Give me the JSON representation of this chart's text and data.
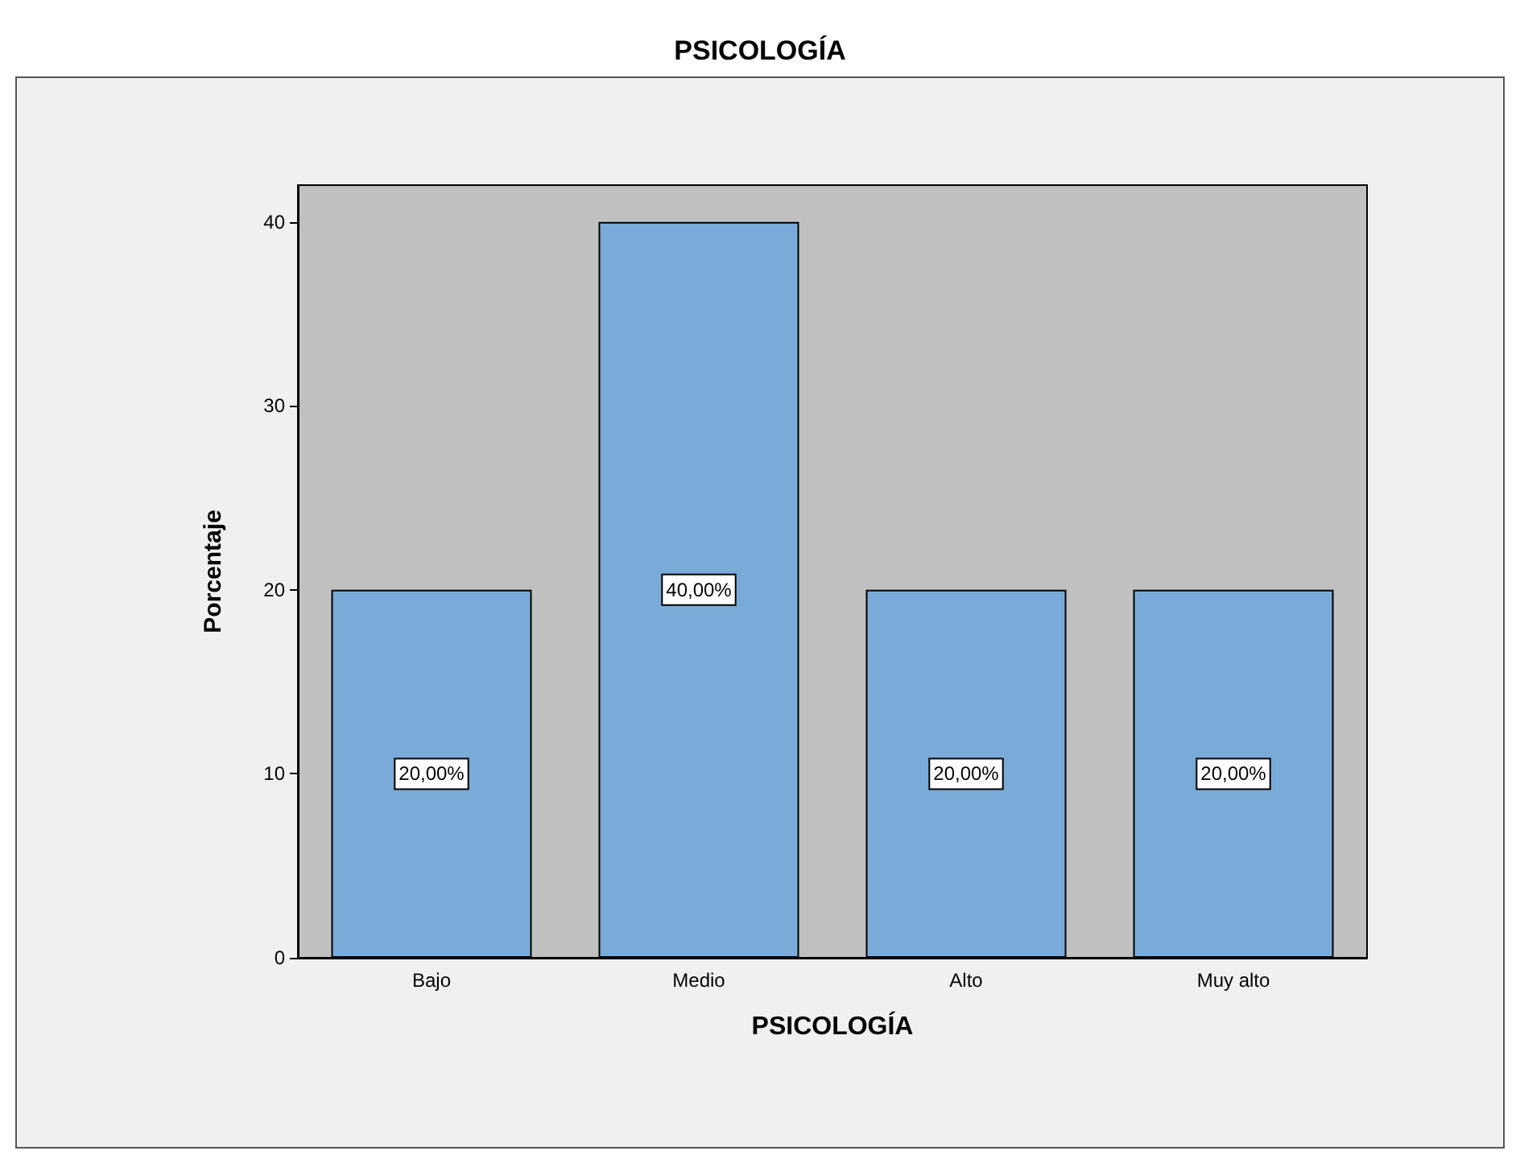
{
  "chart_data": {
    "type": "bar",
    "title": "PSICOLOGÍA",
    "xlabel": "PSICOLOGÍA",
    "ylabel": "Porcentaje",
    "categories": [
      "Bajo",
      "Medio",
      "Alto",
      "Muy alto"
    ],
    "values": [
      20,
      40,
      20,
      20
    ],
    "value_labels": [
      "20,00%",
      "40,00%",
      "20,00%",
      "20,00%"
    ],
    "color": "#7aaad8",
    "ylim": [
      0,
      42
    ],
    "yticks": [
      0,
      10,
      20,
      30,
      40
    ],
    "grid": false
  }
}
